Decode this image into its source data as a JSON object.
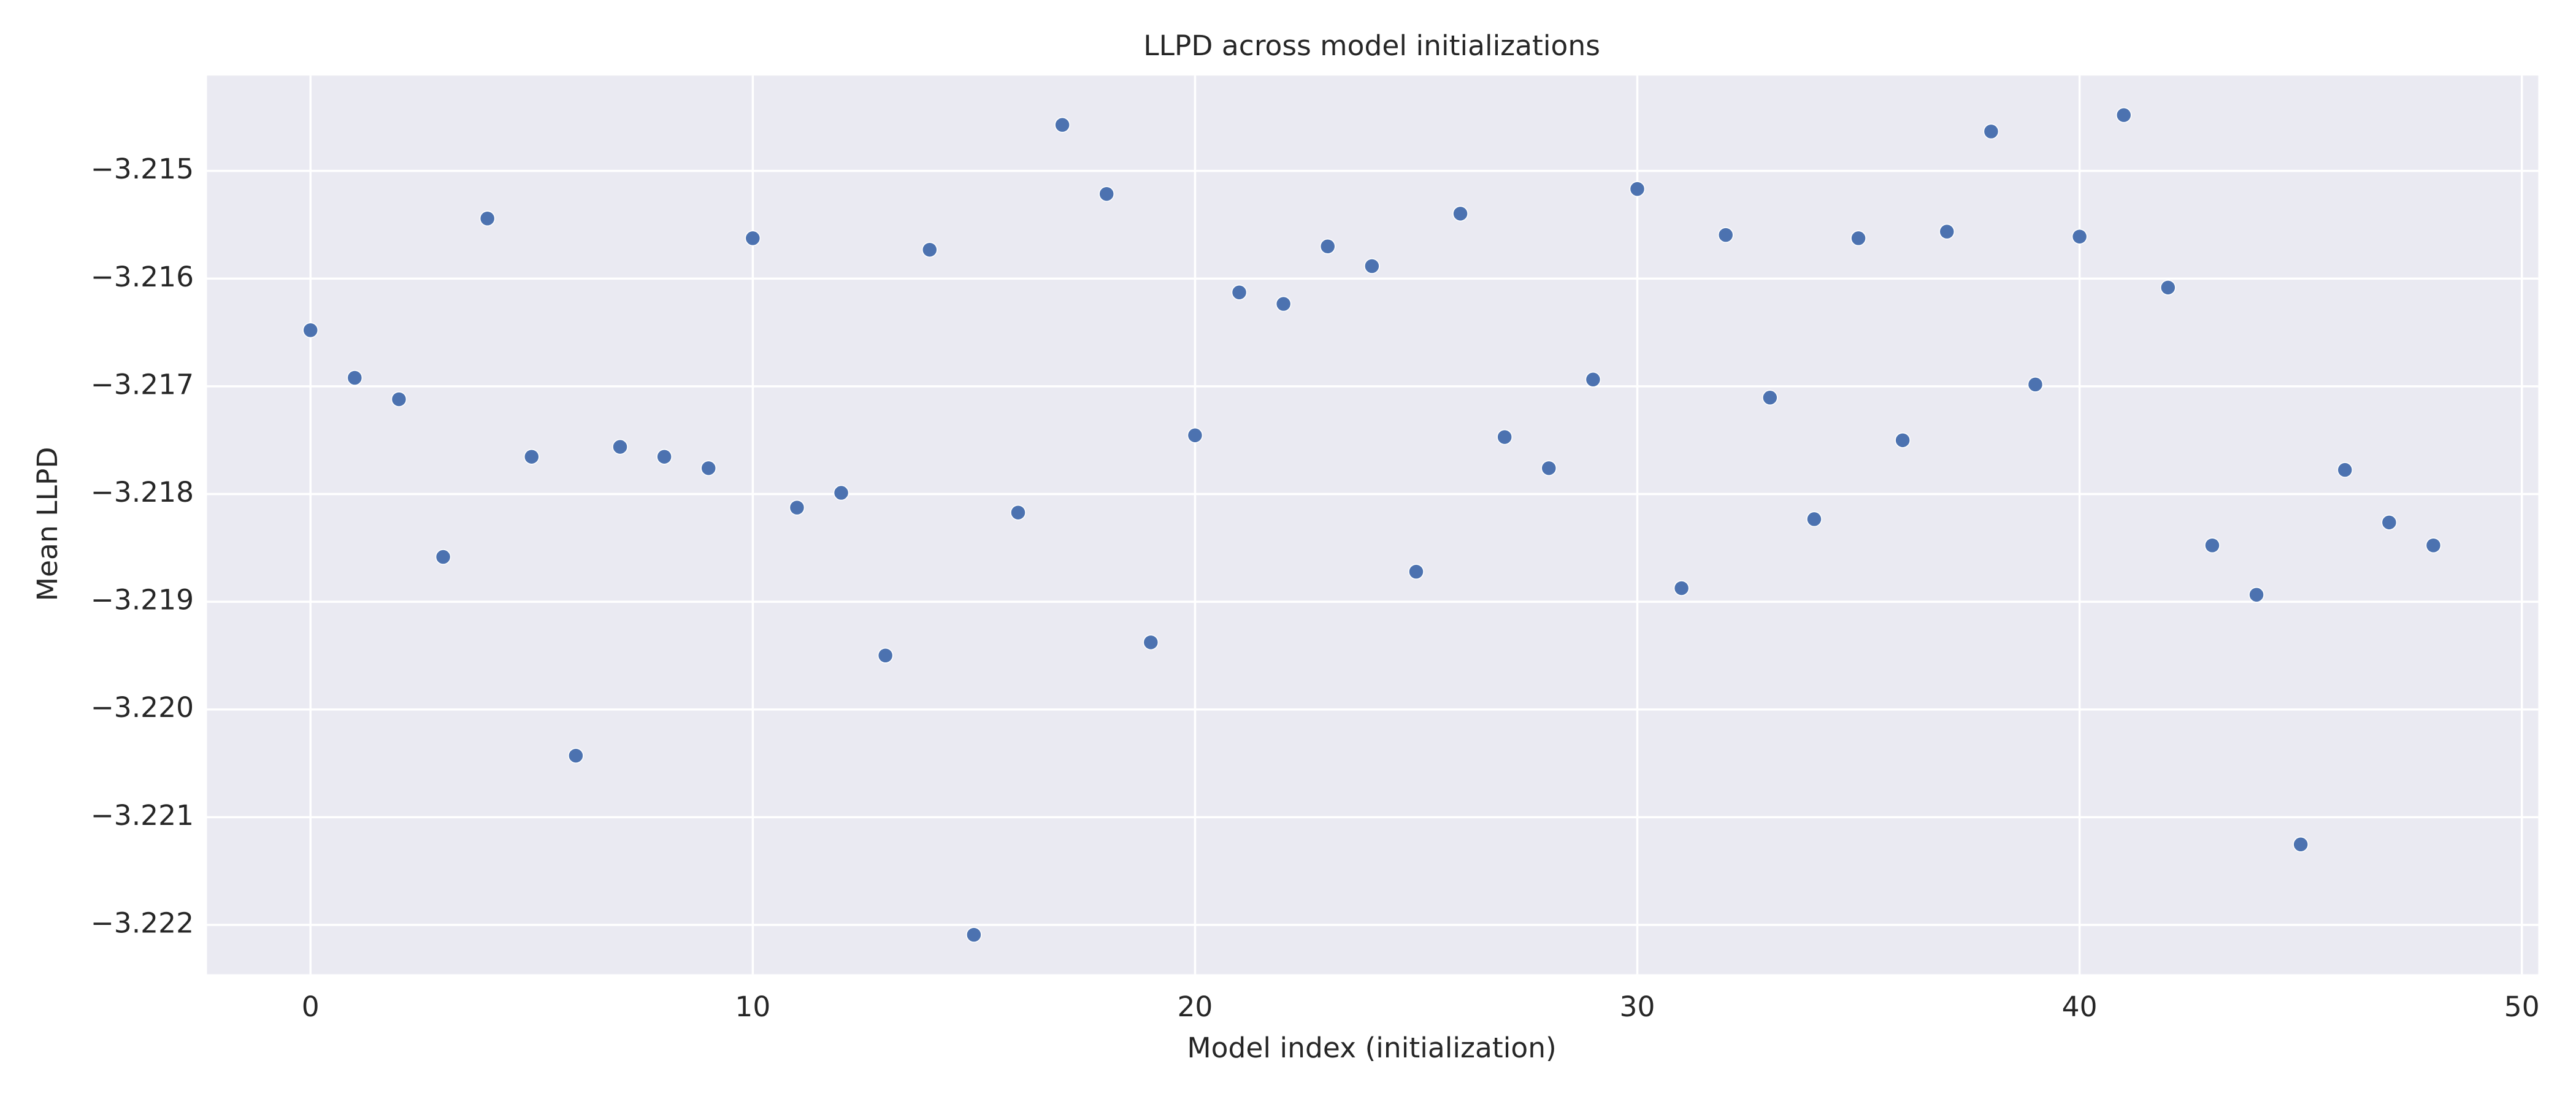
{
  "chart_data": {
    "type": "scatter",
    "title": "LLPD across model initializations",
    "xlabel": "Model index (initialization)",
    "ylabel": "Mean LLPD",
    "x": [
      0,
      1,
      2,
      3,
      4,
      5,
      6,
      7,
      8,
      9,
      10,
      11,
      12,
      13,
      14,
      15,
      16,
      17,
      18,
      19,
      20,
      21,
      22,
      23,
      24,
      25,
      26,
      27,
      28,
      29,
      30,
      31,
      32,
      33,
      34,
      35,
      36,
      37,
      38,
      39,
      40,
      41,
      42,
      43,
      44,
      45,
      46,
      47,
      48
    ],
    "values": [
      -3.216479,
      -3.216921,
      -3.21712,
      -3.218584,
      -3.215442,
      -3.217654,
      -3.220429,
      -3.217562,
      -3.217654,
      -3.21776,
      -3.215625,
      -3.218126,
      -3.217989,
      -3.219499,
      -3.215732,
      -3.222092,
      -3.218172,
      -3.214573,
      -3.215214,
      -3.219377,
      -3.217455,
      -3.216128,
      -3.216235,
      -3.215701,
      -3.215884,
      -3.218721,
      -3.215397,
      -3.217471,
      -3.21776,
      -3.216937,
      -3.215168,
      -3.218874,
      -3.215595,
      -3.217105,
      -3.218233,
      -3.215625,
      -3.217501,
      -3.215564,
      -3.214634,
      -3.216983,
      -3.21561,
      -3.214482,
      -3.216083,
      -3.218477,
      -3.218935,
      -3.221253,
      -3.217776,
      -3.218264,
      -3.218477
    ],
    "color": "#4c72b0",
    "xlim": [
      -2.34,
      50.37
    ],
    "xticks": [
      0,
      10,
      20,
      30,
      40,
      50
    ],
    "ylim": [
      -3.222458,
      -3.214115
    ],
    "yticks": [
      {
        "value": -3.222,
        "label": "−3.222"
      },
      {
        "value": -3.221,
        "label": "−3.221"
      },
      {
        "value": -3.22,
        "label": "−3.220"
      },
      {
        "value": -3.219,
        "label": "−3.219"
      },
      {
        "value": -3.218,
        "label": "−3.218"
      },
      {
        "value": -3.217,
        "label": "−3.217"
      },
      {
        "value": -3.216,
        "label": "−3.216"
      },
      {
        "value": -3.215,
        "label": "−3.215"
      }
    ],
    "grid": true
  }
}
